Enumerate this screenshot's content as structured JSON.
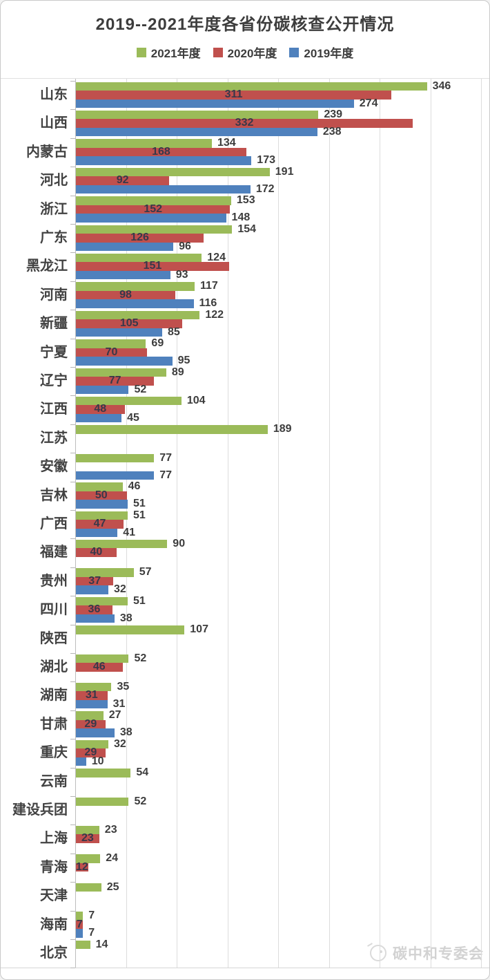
{
  "title": "2019--2021年度各省份碳核查公开情况",
  "legend": [
    {
      "label": "2021年度",
      "color": "#9BBB59"
    },
    {
      "label": "2020年度",
      "color": "#C0504D"
    },
    {
      "label": "2019年度",
      "color": "#4F81BD"
    }
  ],
  "watermark": {
    "text": "碳中和专委会",
    "icon": "logo-circle-icon"
  },
  "chart_data": {
    "type": "bar",
    "orientation": "horizontal",
    "title": "2019--2021年度各省份碳核查公开情况",
    "legend_position": "top",
    "grid": true,
    "xlim": [
      0,
      400
    ],
    "gridline_interval": 50,
    "value_labels": "shown",
    "categories": [
      "山东",
      "山西",
      "内蒙古",
      "河北",
      "浙江",
      "广东",
      "黑龙江",
      "河南",
      "新疆",
      "宁夏",
      "辽宁",
      "江西",
      "江苏",
      "安徽",
      "吉林",
      "广西",
      "福建",
      "贵州",
      "四川",
      "陕西",
      "湖北",
      "湖南",
      "甘肃",
      "重庆",
      "云南",
      "建设兵团",
      "上海",
      "青海",
      "天津",
      "海南",
      "北京"
    ],
    "series": [
      {
        "name": "2021年度",
        "color": "#9BBB59",
        "values": [
          346,
          239,
          134,
          191,
          153,
          154,
          124,
          117,
          122,
          69,
          89,
          104,
          189,
          77,
          46,
          51,
          90,
          57,
          51,
          107,
          52,
          35,
          27,
          32,
          54,
          52,
          23,
          24,
          25,
          7,
          14
        ]
      },
      {
        "name": "2020年度",
        "color": "#C0504D",
        "values": [
          311,
          332,
          168,
          92,
          152,
          126,
          151,
          98,
          105,
          70,
          77,
          48,
          null,
          null,
          50,
          47,
          40,
          37,
          36,
          null,
          46,
          31,
          29,
          29,
          null,
          null,
          23,
          12,
          null,
          7,
          null
        ]
      },
      {
        "name": "2019年度",
        "color": "#4F81BD",
        "values": [
          274,
          238,
          173,
          172,
          148,
          96,
          93,
          116,
          85,
          95,
          52,
          45,
          null,
          77,
          51,
          41,
          null,
          32,
          38,
          null,
          null,
          31,
          38,
          10,
          null,
          null,
          null,
          null,
          null,
          7,
          null
        ]
      }
    ]
  }
}
